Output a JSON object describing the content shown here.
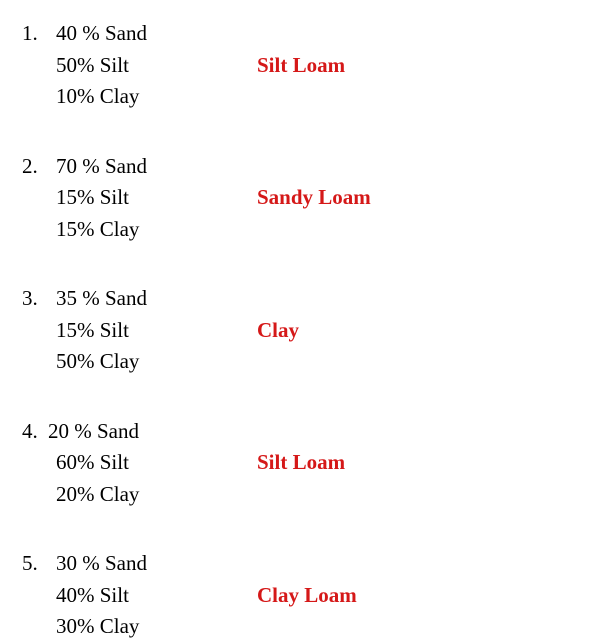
{
  "text_color": "#000000",
  "classification_color": "#d51818",
  "background_color": "#ffffff",
  "font_family": "Georgia, serif",
  "font_size": 21,
  "entries": [
    {
      "number": "1.",
      "sand": "40 % Sand",
      "silt": "50% Silt",
      "clay": "10% Clay",
      "classification": "Silt Loam",
      "tight": false
    },
    {
      "number": "2.",
      "sand": "70 % Sand",
      "silt": "15% Silt",
      "clay": "15% Clay",
      "classification": "Sandy Loam",
      "tight": false
    },
    {
      "number": "3.",
      "sand": "35 % Sand",
      "silt": "15% Silt",
      "clay": "50% Clay",
      "classification": "Clay",
      "tight": false
    },
    {
      "number": "4.",
      "sand": "20 % Sand",
      "silt": "60% Silt",
      "clay": "20% Clay",
      "classification": "Silt Loam",
      "tight": true
    },
    {
      "number": "5.",
      "sand": "30 % Sand",
      "silt": "40% Silt",
      "clay": "30% Clay",
      "classification": "Clay Loam",
      "tight": false
    }
  ]
}
